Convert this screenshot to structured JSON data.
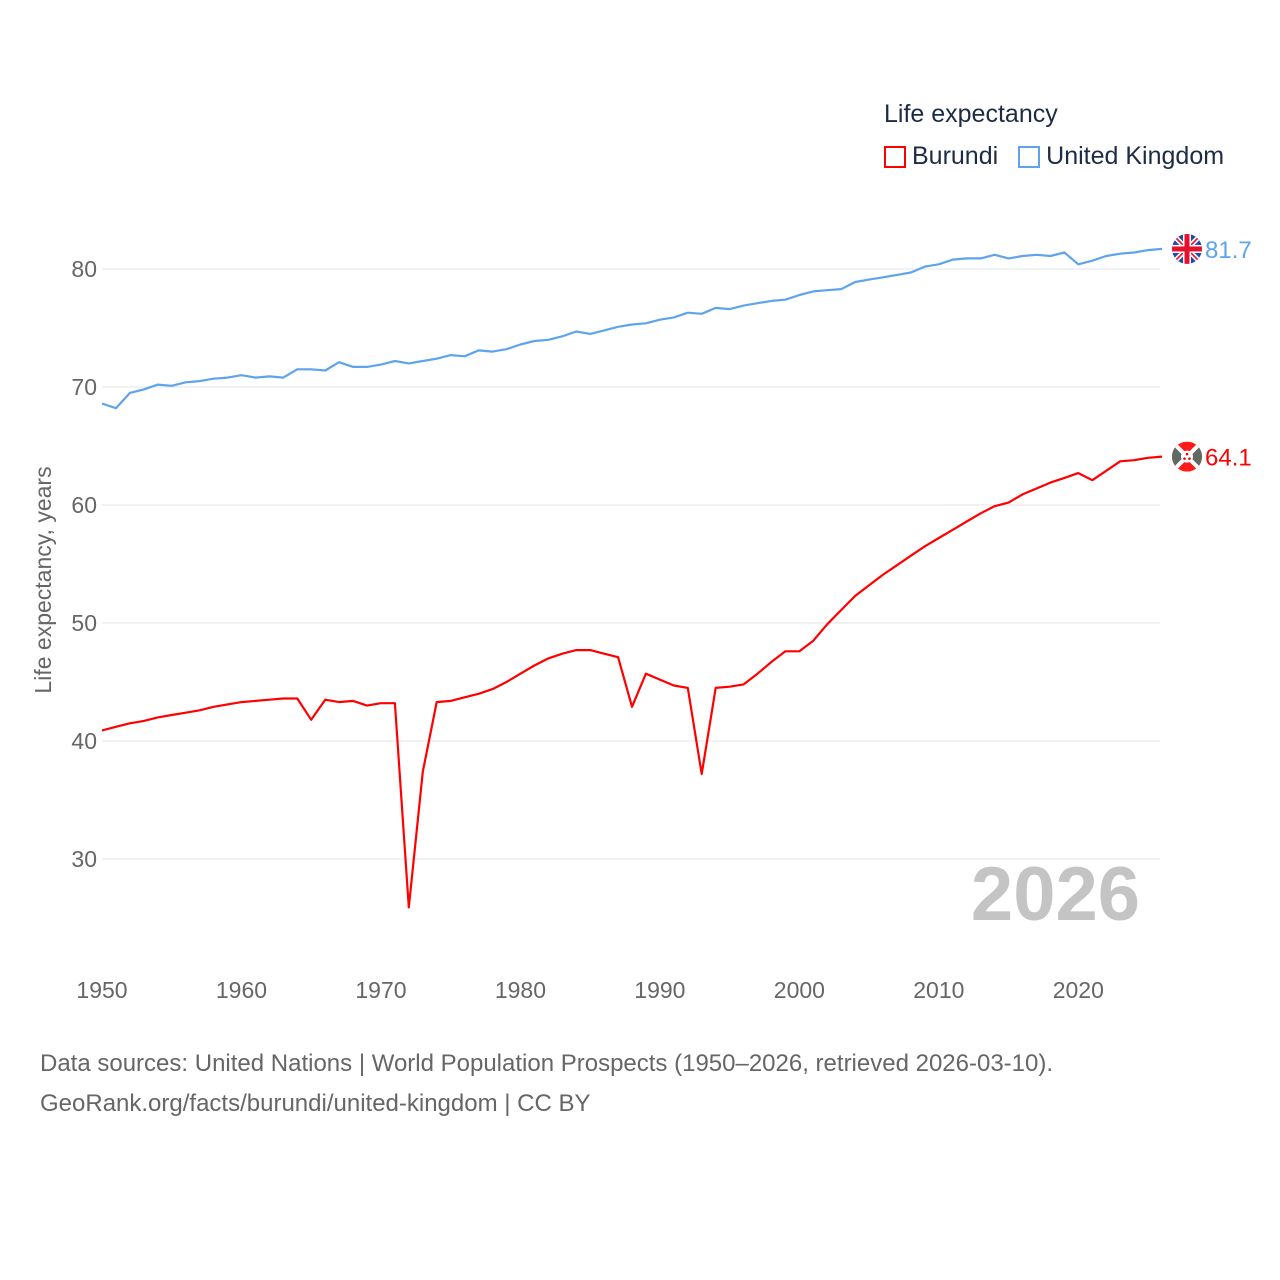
{
  "chart_data": {
    "type": "line",
    "title": "Life expectancy",
    "xlabel": "",
    "ylabel": "Life expectancy, years",
    "xlim": [
      1950,
      2026
    ],
    "ylim": [
      24,
      85
    ],
    "x_ticks": [
      1950,
      1960,
      1970,
      1980,
      1990,
      2000,
      2010,
      2020
    ],
    "y_ticks": [
      30,
      40,
      50,
      60,
      70,
      80
    ],
    "grid": true,
    "legend_position": "top-right",
    "year_watermark": "2026",
    "x": [
      1950,
      1951,
      1952,
      1953,
      1954,
      1955,
      1956,
      1957,
      1958,
      1959,
      1960,
      1961,
      1962,
      1963,
      1964,
      1965,
      1966,
      1967,
      1968,
      1969,
      1970,
      1971,
      1972,
      1973,
      1974,
      1975,
      1976,
      1977,
      1978,
      1979,
      1980,
      1981,
      1982,
      1983,
      1984,
      1985,
      1986,
      1987,
      1988,
      1989,
      1990,
      1991,
      1992,
      1993,
      1994,
      1995,
      1996,
      1997,
      1998,
      1999,
      2000,
      2001,
      2002,
      2003,
      2004,
      2005,
      2006,
      2007,
      2008,
      2009,
      2010,
      2011,
      2012,
      2013,
      2014,
      2015,
      2016,
      2017,
      2018,
      2019,
      2020,
      2021,
      2022,
      2023,
      2024,
      2025,
      2026
    ],
    "series": [
      {
        "name": "Burundi",
        "color": "#ff0000",
        "end_label": "64.1",
        "values": [
          40.9,
          41.2,
          41.5,
          41.7,
          42.0,
          42.2,
          42.4,
          42.6,
          42.9,
          43.1,
          43.3,
          43.4,
          43.5,
          43.6,
          43.6,
          41.8,
          43.5,
          43.3,
          43.4,
          43.0,
          43.2,
          43.2,
          25.9,
          37.4,
          43.3,
          43.4,
          43.7,
          44.0,
          44.4,
          45.0,
          45.7,
          46.4,
          47.0,
          47.4,
          47.7,
          47.7,
          47.4,
          47.1,
          42.9,
          45.7,
          45.2,
          44.7,
          44.5,
          37.2,
          44.5,
          44.6,
          44.8,
          45.7,
          46.7,
          47.6,
          47.6,
          48.5,
          49.9,
          51.1,
          52.3,
          53.2,
          54.1,
          54.9,
          55.7,
          56.5,
          57.2,
          57.9,
          58.6,
          59.3,
          59.9,
          60.2,
          60.9,
          61.4,
          61.9,
          62.3,
          62.7,
          62.1,
          62.9,
          63.7,
          63.8,
          64.0,
          64.1
        ]
      },
      {
        "name": "United Kingdom",
        "color": "#5ea4ec",
        "end_label": "81.7",
        "values": [
          68.6,
          68.2,
          69.5,
          69.8,
          70.2,
          70.1,
          70.4,
          70.5,
          70.7,
          70.8,
          71.0,
          70.8,
          70.9,
          70.8,
          71.5,
          71.5,
          71.4,
          72.1,
          71.7,
          71.7,
          71.9,
          72.2,
          72.0,
          72.2,
          72.4,
          72.7,
          72.6,
          73.1,
          73.0,
          73.2,
          73.6,
          73.9,
          74.0,
          74.3,
          74.7,
          74.5,
          74.8,
          75.1,
          75.3,
          75.4,
          75.7,
          75.9,
          76.3,
          76.2,
          76.7,
          76.6,
          76.9,
          77.1,
          77.3,
          77.4,
          77.8,
          78.1,
          78.2,
          78.3,
          78.9,
          79.1,
          79.3,
          79.5,
          79.7,
          80.2,
          80.4,
          80.8,
          80.9,
          80.9,
          81.2,
          80.9,
          81.1,
          81.2,
          81.1,
          81.4,
          80.4,
          80.7,
          81.1,
          81.3,
          81.4,
          81.6,
          81.7
        ]
      }
    ]
  },
  "footer": {
    "sources": "Data sources: United Nations | World Population Prospects (1950–2026, retrieved 2026-03-10).",
    "credit": "GeoRank.org/facts/burundi/united-kingdom | CC BY"
  }
}
